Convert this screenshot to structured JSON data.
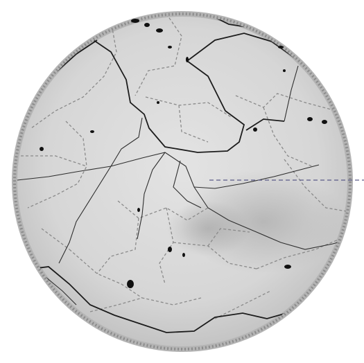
{
  "map": {
    "style": "circular-relief-map",
    "background_color": "#ffffff",
    "land_color": "#dcdcdc",
    "rim_color": "#9a9a9a",
    "major_boundary_color": "#1c1c1c",
    "minor_boundary_color": "#8a8a8a",
    "river_color": "#2e2e2e",
    "marker_line_color": "#5a5a88",
    "marker_line_style": "dashed",
    "dark_patch_color": "#111111"
  }
}
